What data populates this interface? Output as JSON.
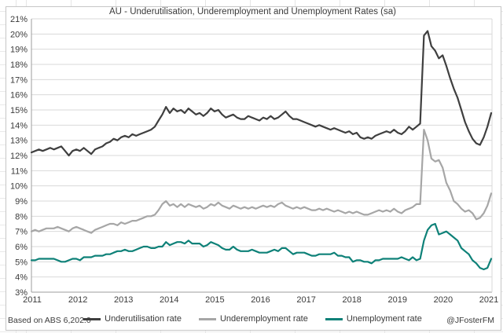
{
  "footnotes": {
    "source": "Based on ABS 6,202.0",
    "credit": "@JFosterFM"
  },
  "chart_data": {
    "type": "line",
    "title": "AU - Underutilisation, Underemployment and Unemployment Rates (sa)",
    "frequency": "monthly",
    "x_start": "Jul 2011",
    "x_end": "Oct 2021",
    "x_tick_labels": [
      "2011",
      "2012",
      "2013",
      "2014",
      "2015",
      "2016",
      "2017",
      "2018",
      "2019",
      "2020",
      "2021"
    ],
    "y_tick_labels": [
      "21%",
      "20%",
      "19%",
      "18%",
      "17%",
      "16%",
      "15%",
      "14%",
      "13%",
      "12%",
      "11%",
      "10%",
      "9%",
      "8%",
      "7%",
      "6%",
      "5%",
      "4%",
      "3%"
    ],
    "y_axis": {
      "min": 3,
      "max": 21,
      "step": 1,
      "suffix": "%"
    },
    "grid": true,
    "legend_position": "bottom",
    "axis_color": "#9e9e9e",
    "gridline_color": "#d9d9d9",
    "series": [
      {
        "name": "Underutilisation rate",
        "color": "#3f3f3f",
        "values": [
          12.2,
          12.3,
          12.4,
          12.3,
          12.4,
          12.5,
          12.4,
          12.5,
          12.6,
          12.3,
          12.0,
          12.3,
          12.4,
          12.3,
          12.5,
          12.3,
          12.1,
          12.4,
          12.5,
          12.6,
          12.8,
          12.9,
          13.1,
          13.0,
          13.2,
          13.3,
          13.2,
          13.4,
          13.3,
          13.4,
          13.5,
          13.6,
          13.7,
          13.9,
          14.3,
          14.7,
          15.2,
          14.8,
          15.1,
          14.9,
          15.0,
          14.8,
          15.1,
          14.9,
          14.7,
          14.8,
          14.6,
          14.8,
          15.1,
          14.9,
          15.0,
          14.7,
          14.5,
          14.6,
          14.7,
          14.5,
          14.4,
          14.4,
          14.6,
          14.5,
          14.4,
          14.3,
          14.5,
          14.4,
          14.6,
          14.4,
          14.5,
          14.7,
          14.9,
          14.6,
          14.4,
          14.4,
          14.3,
          14.2,
          14.1,
          14.0,
          13.9,
          14.0,
          13.9,
          13.8,
          13.7,
          13.8,
          13.7,
          13.6,
          13.5,
          13.6,
          13.4,
          13.5,
          13.2,
          13.1,
          13.2,
          13.1,
          13.3,
          13.4,
          13.5,
          13.6,
          13.5,
          13.7,
          13.5,
          13.4,
          13.6,
          13.9,
          13.7,
          13.9,
          14.1,
          19.9,
          20.2,
          19.2,
          18.9,
          18.4,
          18.6,
          17.9,
          17.1,
          16.4,
          15.8,
          15.0,
          14.2,
          13.6,
          13.1,
          12.8,
          12.7,
          13.2,
          13.9,
          14.8
        ]
      },
      {
        "name": "Underemployment rate",
        "color": "#a6a6a6",
        "values": [
          7.0,
          7.1,
          7.0,
          7.1,
          7.2,
          7.2,
          7.2,
          7.3,
          7.2,
          7.1,
          7.0,
          7.2,
          7.3,
          7.2,
          7.1,
          7.0,
          6.9,
          7.1,
          7.2,
          7.3,
          7.4,
          7.5,
          7.5,
          7.4,
          7.6,
          7.5,
          7.6,
          7.7,
          7.7,
          7.8,
          7.9,
          8.0,
          8.0,
          8.1,
          8.4,
          8.8,
          9.0,
          8.7,
          8.8,
          8.6,
          8.8,
          8.6,
          8.8,
          8.7,
          8.6,
          8.7,
          8.5,
          8.6,
          8.8,
          8.7,
          8.9,
          8.7,
          8.6,
          8.5,
          8.7,
          8.6,
          8.5,
          8.6,
          8.5,
          8.6,
          8.5,
          8.6,
          8.7,
          8.6,
          8.7,
          8.6,
          8.8,
          8.9,
          8.7,
          8.6,
          8.5,
          8.6,
          8.5,
          8.6,
          8.5,
          8.4,
          8.4,
          8.5,
          8.4,
          8.5,
          8.4,
          8.3,
          8.4,
          8.3,
          8.2,
          8.3,
          8.2,
          8.3,
          8.2,
          8.1,
          8.1,
          8.2,
          8.3,
          8.4,
          8.3,
          8.4,
          8.3,
          8.5,
          8.3,
          8.2,
          8.4,
          8.5,
          8.6,
          8.8,
          8.8,
          13.7,
          13.0,
          11.8,
          11.6,
          11.7,
          11.2,
          10.2,
          9.7,
          9.0,
          8.8,
          8.5,
          8.3,
          8.4,
          8.2,
          7.8,
          7.9,
          8.2,
          8.7,
          9.5
        ]
      },
      {
        "name": "Unemployment rate",
        "color": "#0e8178",
        "values": [
          5.1,
          5.1,
          5.2,
          5.2,
          5.2,
          5.2,
          5.2,
          5.1,
          5.0,
          5.0,
          5.1,
          5.2,
          5.2,
          5.1,
          5.3,
          5.3,
          5.3,
          5.4,
          5.4,
          5.4,
          5.5,
          5.5,
          5.6,
          5.7,
          5.7,
          5.8,
          5.7,
          5.7,
          5.8,
          5.9,
          6.0,
          6.0,
          5.9,
          5.9,
          6.0,
          6.0,
          6.3,
          6.1,
          6.2,
          6.3,
          6.3,
          6.2,
          6.4,
          6.2,
          6.2,
          6.2,
          6.0,
          6.1,
          6.3,
          6.2,
          6.1,
          5.9,
          5.8,
          5.8,
          6.0,
          5.8,
          5.7,
          5.7,
          5.7,
          5.8,
          5.7,
          5.6,
          5.6,
          5.6,
          5.7,
          5.8,
          5.7,
          5.9,
          5.9,
          5.7,
          5.5,
          5.6,
          5.6,
          5.6,
          5.5,
          5.4,
          5.4,
          5.5,
          5.5,
          5.5,
          5.5,
          5.6,
          5.4,
          5.4,
          5.3,
          5.3,
          5.0,
          5.1,
          5.1,
          5.0,
          5.0,
          4.9,
          5.1,
          5.1,
          5.2,
          5.2,
          5.2,
          5.2,
          5.2,
          5.3,
          5.2,
          5.1,
          5.3,
          5.1,
          5.2,
          6.4,
          7.1,
          7.4,
          7.5,
          6.8,
          6.9,
          7.0,
          6.8,
          6.6,
          6.4,
          5.9,
          5.7,
          5.5,
          5.1,
          4.9,
          4.6,
          4.5,
          4.6,
          5.2
        ]
      }
    ]
  }
}
